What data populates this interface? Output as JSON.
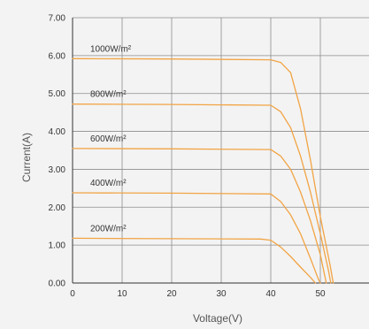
{
  "chart_data": {
    "type": "line",
    "xlabel": "Voltage(V)",
    "ylabel": "Current(A)",
    "xlim": [
      0,
      60
    ],
    "ylim": [
      0,
      7
    ],
    "x_ticks": [
      "0",
      "10",
      "20",
      "30",
      "40",
      "50"
    ],
    "y_ticks": [
      "0.00",
      "1.00",
      "2.00",
      "3.00",
      "4.00",
      "5.00",
      "6.00",
      "7.00"
    ],
    "grid": true,
    "colors": {
      "line": "#f2a444",
      "grid": "#8c8c8c",
      "axis": "#333333",
      "background": "#f3f3f3"
    },
    "series": [
      {
        "name": "1000W/m²",
        "points": [
          [
            0,
            5.92
          ],
          [
            20,
            5.91
          ],
          [
            40,
            5.89
          ],
          [
            42,
            5.82
          ],
          [
            44,
            5.55
          ],
          [
            46,
            4.6
          ],
          [
            48,
            3.25
          ],
          [
            50,
            1.75
          ],
          [
            52,
            0.45
          ],
          [
            52.6,
            0
          ]
        ]
      },
      {
        "name": "800W/m²",
        "points": [
          [
            0,
            4.72
          ],
          [
            20,
            4.71
          ],
          [
            40,
            4.69
          ],
          [
            42,
            4.52
          ],
          [
            44,
            4.1
          ],
          [
            46,
            3.35
          ],
          [
            48,
            2.4
          ],
          [
            50,
            1.3
          ],
          [
            51.6,
            0.35
          ],
          [
            52.1,
            0
          ]
        ]
      },
      {
        "name": "600W/m²",
        "points": [
          [
            0,
            3.55
          ],
          [
            20,
            3.54
          ],
          [
            40,
            3.52
          ],
          [
            42,
            3.35
          ],
          [
            44,
            3.0
          ],
          [
            46,
            2.4
          ],
          [
            48,
            1.65
          ],
          [
            50,
            0.75
          ],
          [
            51.2,
            0
          ]
        ]
      },
      {
        "name": "400W/m²",
        "points": [
          [
            0,
            2.38
          ],
          [
            20,
            2.37
          ],
          [
            40,
            2.35
          ],
          [
            42,
            2.15
          ],
          [
            44,
            1.8
          ],
          [
            46,
            1.3
          ],
          [
            48,
            0.65
          ],
          [
            49.6,
            0.1
          ],
          [
            50,
            0
          ]
        ]
      },
      {
        "name": "200W/m²",
        "points": [
          [
            0,
            1.18
          ],
          [
            20,
            1.17
          ],
          [
            38,
            1.16
          ],
          [
            40,
            1.13
          ],
          [
            42,
            0.95
          ],
          [
            44,
            0.7
          ],
          [
            46,
            0.42
          ],
          [
            48,
            0.15
          ],
          [
            49,
            0
          ]
        ]
      }
    ]
  }
}
